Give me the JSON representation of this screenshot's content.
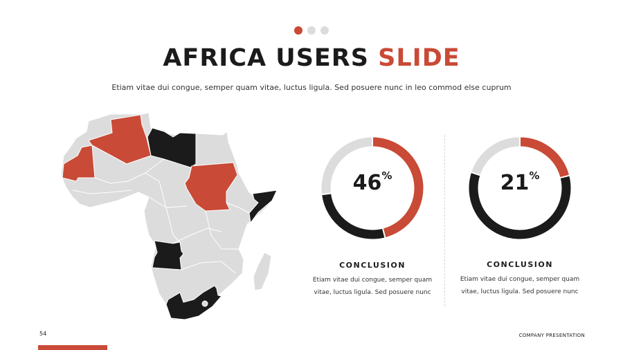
{
  "header": {
    "title_main": "AFRICA USERS",
    "title_accent": "SLIDE",
    "subtitle": "Etiam vitae dui congue, semper quam vitae, luctus ligula. Sed posuere nunc in leo commod else cuprum",
    "pagination_dots": 3,
    "active_dot": 1
  },
  "colors": {
    "accent": "#c94a36",
    "dark": "#1b1b1b",
    "neutral": "#dcdcdc"
  },
  "map": {
    "highlighted_accent": [
      "Algeria",
      "Mauritania",
      "Sudan"
    ],
    "highlighted_dark": [
      "Libya",
      "Somalia",
      "Angola",
      "South Africa"
    ]
  },
  "stats": [
    {
      "value": "46",
      "unit": "%",
      "segments": [
        46,
        27,
        27
      ],
      "heading": "CONCLUSION",
      "text": "Etiam vitae dui congue, semper quam vitae, luctus ligula. Sed posuere nunc"
    },
    {
      "value": "21",
      "unit": "%",
      "segments": [
        21,
        59,
        20
      ],
      "heading": "CONCLUSION",
      "text": "Etiam vitae dui congue, semper quam vitae, luctus ligula. Sed posuere nunc"
    }
  ],
  "footer": {
    "page_number": "54",
    "label": "COMPANY PRESENTATION"
  }
}
